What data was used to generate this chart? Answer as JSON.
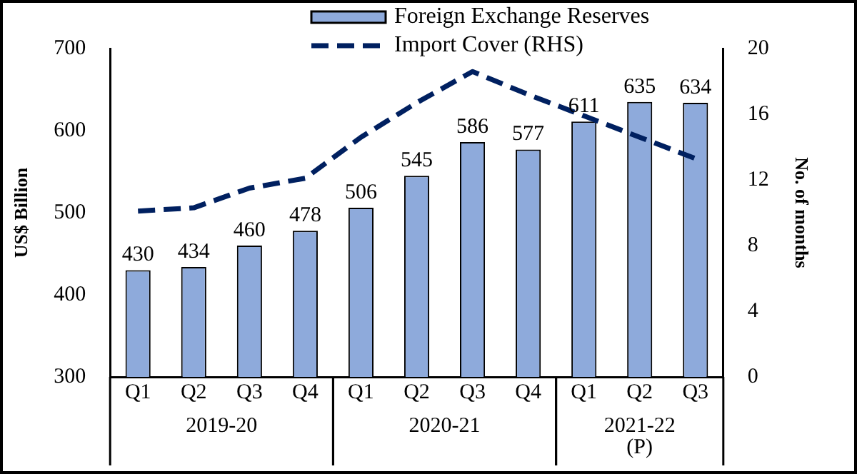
{
  "chart_data": {
    "type": "bar",
    "ylabel": "US$ Billion",
    "y2label": "No. of months",
    "categories": [
      "Q1",
      "Q2",
      "Q3",
      "Q4",
      "Q1",
      "Q2",
      "Q3",
      "Q4",
      "Q1",
      "Q2",
      "Q3"
    ],
    "series": [
      {
        "name": "Foreign Exchange Reserves",
        "color": "#8eaadb",
        "values": [
          430,
          434,
          460,
          478,
          506,
          545,
          586,
          577,
          611,
          635,
          634
        ],
        "value_labels": [
          "430",
          "434",
          "460",
          "478",
          "506",
          "545",
          "586",
          "577",
          "611",
          "635",
          "634"
        ]
      },
      {
        "name": "Import Cover (RHS)",
        "type": "line",
        "axis": "y2",
        "color": "#002060",
        "line_style": "dashed",
        "marker": "none",
        "values": [
          10.1,
          10.3,
          11.5,
          12.1,
          14.6,
          16.7,
          18.6,
          17.2,
          15.9,
          14.6,
          13.3
        ]
      }
    ],
    "ylim": [
      300,
      700
    ],
    "yticks": [
      300,
      400,
      500,
      600,
      700
    ],
    "y2lim": [
      0,
      20
    ],
    "y2ticks": [
      0,
      4,
      8,
      12,
      16,
      20
    ],
    "annotations": [
      "2019-20",
      "2020-21",
      "2021-22\n(P)"
    ],
    "legend": "top",
    "grid": false
  }
}
